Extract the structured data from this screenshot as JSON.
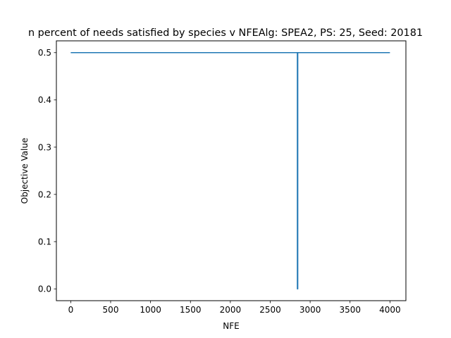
{
  "chart_data": {
    "type": "line",
    "title": "n percent of needs satisfied by species v NFEAlg: SPEA2, PS: 25, Seed: 20181",
    "xlabel": "NFE",
    "ylabel": "Objective Value",
    "xlim": [
      -180,
      4200
    ],
    "ylim": [
      -0.025,
      0.525
    ],
    "xticks": [
      0,
      500,
      1000,
      1500,
      2000,
      2500,
      3000,
      3500,
      4000
    ],
    "xtick_labels": [
      "0",
      "500",
      "1000",
      "1500",
      "2000",
      "2500",
      "3000",
      "3500",
      "4000"
    ],
    "yticks": [
      0.0,
      0.1,
      0.2,
      0.3,
      0.4,
      0.5
    ],
    "ytick_labels": [
      "0.0",
      "0.1",
      "0.2",
      "0.3",
      "0.4",
      "0.5"
    ],
    "grid": false,
    "series": [
      {
        "color": "#1f77b4",
        "x": [
          0,
          2840,
          2840,
          2845,
          2845,
          4000
        ],
        "y": [
          0.5,
          0.5,
          0.0,
          0.0,
          0.5,
          0.5
        ]
      }
    ]
  }
}
